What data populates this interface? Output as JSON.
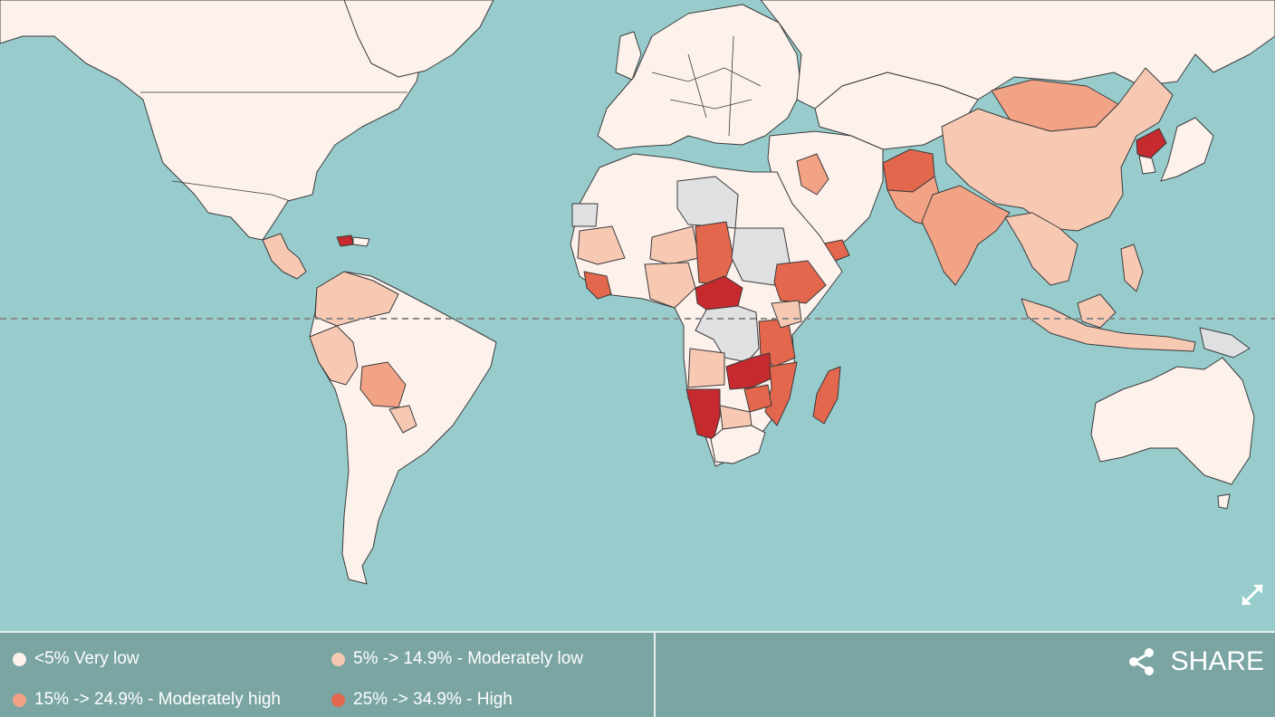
{
  "legend": [
    {
      "label": "<5% Very low",
      "color": "#fdf1ec"
    },
    {
      "label": "5% -> 14.9% - Moderately low",
      "color": "#f7c9b3"
    },
    {
      "label": "15% -> 24.9% - Moderately high",
      "color": "#f2a285"
    },
    {
      "label": "25% -> 34.9% - High",
      "color": "#e2674c"
    }
  ],
  "share": {
    "label": "SHARE",
    "icon": "share-icon"
  },
  "expand": {
    "icon": "expand-icon"
  },
  "colors": {
    "ocean": "#98cccc",
    "footer": "#7aa5a2",
    "very_low": "#fdf1ec",
    "moderately_low": "#f7c9b3",
    "moderately_high": "#f2a285",
    "high": "#e2674c",
    "very_high": "#c62a2e",
    "no_data": "#dfe0e2"
  }
}
